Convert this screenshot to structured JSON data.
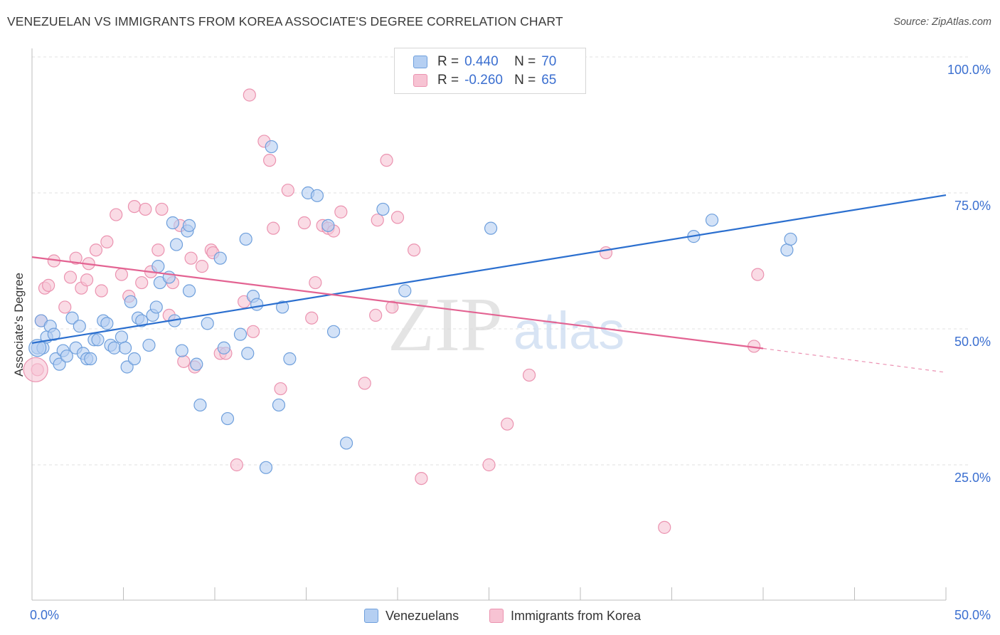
{
  "title": "VENEZUELAN VS IMMIGRANTS FROM KOREA ASSOCIATE'S DEGREE CORRELATION CHART",
  "source": "Source: ZipAtlas.com",
  "watermark": {
    "zip": "ZIP",
    "atlas": "atlas"
  },
  "legend": {
    "rows": [
      {
        "r_label": "R =",
        "r_value": "0.440",
        "n_label": "N =",
        "n_value": "70"
      },
      {
        "r_label": "R =",
        "r_value": "-0.260",
        "n_label": "N =",
        "n_value": "65"
      }
    ]
  },
  "bottom_legend": {
    "venezuelans": "Venezuelans",
    "korea": "Immigrants from Korea"
  },
  "colors": {
    "blue_fill": "#b5cff2",
    "blue_stroke": "#6e9fdc",
    "blue_line": "#2b6fcf",
    "pink_fill": "#f7c3d3",
    "pink_stroke": "#eb93b0",
    "pink_line": "#e36392",
    "axis_text": "#3b6fd0",
    "grid": "#e2e2e2"
  },
  "chart_data": {
    "type": "scatter",
    "title": "VENEZUELAN VS IMMIGRANTS FROM KOREA ASSOCIATE'S DEGREE CORRELATION CHART",
    "xlabel": "",
    "ylabel": "Associate's Degree",
    "xlim": [
      0,
      50
    ],
    "ylim": [
      0,
      105
    ],
    "x_tick_labels": [
      "0.0%",
      "50.0%"
    ],
    "y_ticks": [
      25,
      50,
      75,
      100
    ],
    "y_tick_labels": [
      "25.0%",
      "50.0%",
      "75.0%",
      "100.0%"
    ],
    "grid": true,
    "legend_position": "top-center",
    "series": [
      {
        "name": "Venezuelans",
        "R": 0.44,
        "N": 70,
        "trend": {
          "x": [
            0,
            50
          ],
          "y": [
            47.4,
            74.6
          ]
        },
        "points": [
          [
            0.3,
            46.5
          ],
          [
            0.5,
            51.5
          ],
          [
            0.6,
            46.5
          ],
          [
            0.8,
            48.5
          ],
          [
            1.0,
            50.5
          ],
          [
            1.2,
            49.0
          ],
          [
            1.3,
            44.5
          ],
          [
            1.5,
            43.5
          ],
          [
            1.7,
            46.0
          ],
          [
            1.9,
            45.0
          ],
          [
            2.2,
            52.0
          ],
          [
            2.4,
            46.5
          ],
          [
            2.6,
            50.5
          ],
          [
            2.8,
            45.5
          ],
          [
            3.0,
            44.5
          ],
          [
            3.2,
            44.5
          ],
          [
            3.4,
            48.0
          ],
          [
            3.6,
            48.0
          ],
          [
            3.9,
            51.5
          ],
          [
            4.1,
            51.0
          ],
          [
            4.3,
            47.0
          ],
          [
            4.5,
            46.5
          ],
          [
            4.9,
            48.5
          ],
          [
            5.1,
            46.5
          ],
          [
            5.2,
            43.0
          ],
          [
            5.4,
            55.0
          ],
          [
            5.6,
            44.5
          ],
          [
            5.8,
            52.0
          ],
          [
            6.0,
            51.5
          ],
          [
            6.4,
            47.0
          ],
          [
            6.6,
            52.5
          ],
          [
            6.8,
            54.0
          ],
          [
            6.9,
            61.5
          ],
          [
            7.0,
            58.5
          ],
          [
            7.5,
            59.5
          ],
          [
            7.7,
            69.5
          ],
          [
            7.8,
            51.5
          ],
          [
            7.9,
            65.5
          ],
          [
            8.2,
            46.0
          ],
          [
            8.5,
            68.0
          ],
          [
            8.6,
            57.0
          ],
          [
            8.6,
            69.0
          ],
          [
            9.0,
            43.5
          ],
          [
            9.2,
            36.0
          ],
          [
            9.6,
            51.0
          ],
          [
            10.3,
            63.0
          ],
          [
            10.5,
            46.5
          ],
          [
            10.7,
            33.5
          ],
          [
            11.4,
            49.0
          ],
          [
            11.7,
            66.5
          ],
          [
            11.8,
            45.5
          ],
          [
            12.1,
            56.0
          ],
          [
            12.3,
            54.5
          ],
          [
            12.8,
            24.5
          ],
          [
            13.1,
            83.5
          ],
          [
            13.5,
            36.0
          ],
          [
            13.7,
            54.0
          ],
          [
            14.1,
            44.5
          ],
          [
            15.1,
            75.0
          ],
          [
            15.6,
            74.5
          ],
          [
            16.2,
            69.0
          ],
          [
            16.5,
            49.5
          ],
          [
            17.2,
            29.0
          ],
          [
            19.2,
            72.0
          ],
          [
            20.4,
            57.0
          ],
          [
            25.1,
            68.5
          ],
          [
            36.2,
            67.0
          ],
          [
            37.2,
            70.0
          ],
          [
            41.3,
            64.5
          ],
          [
            41.5,
            66.5
          ]
        ]
      },
      {
        "name": "Immigrants from Korea",
        "R": -0.26,
        "N": 65,
        "trend": {
          "x": [
            0,
            40
          ],
          "y": [
            63.2,
            46.4
          ]
        },
        "trend_dashed": {
          "x": [
            40,
            50
          ],
          "y": [
            46.4,
            42.0
          ]
        },
        "points": [
          [
            0.3,
            42.5
          ],
          [
            0.5,
            51.5
          ],
          [
            0.7,
            57.5
          ],
          [
            0.9,
            58.0
          ],
          [
            1.2,
            62.5
          ],
          [
            1.8,
            54.0
          ],
          [
            2.1,
            59.5
          ],
          [
            2.4,
            63.0
          ],
          [
            2.7,
            57.5
          ],
          [
            3.0,
            59.0
          ],
          [
            3.1,
            62.0
          ],
          [
            3.5,
            64.5
          ],
          [
            3.8,
            57.0
          ],
          [
            4.1,
            66.0
          ],
          [
            4.6,
            71.0
          ],
          [
            4.9,
            60.0
          ],
          [
            5.3,
            56.0
          ],
          [
            5.6,
            72.5
          ],
          [
            6.0,
            58.5
          ],
          [
            6.2,
            72.0
          ],
          [
            6.5,
            60.5
          ],
          [
            6.9,
            64.5
          ],
          [
            7.1,
            72.0
          ],
          [
            7.5,
            52.5
          ],
          [
            7.7,
            58.5
          ],
          [
            8.1,
            69.0
          ],
          [
            8.3,
            44.0
          ],
          [
            8.7,
            63.0
          ],
          [
            8.9,
            43.0
          ],
          [
            9.3,
            61.5
          ],
          [
            9.8,
            64.5
          ],
          [
            9.9,
            64.0
          ],
          [
            10.3,
            45.5
          ],
          [
            10.6,
            45.5
          ],
          [
            11.2,
            25.0
          ],
          [
            11.6,
            55.0
          ],
          [
            11.9,
            93.0
          ],
          [
            12.1,
            49.5
          ],
          [
            12.7,
            84.5
          ],
          [
            13.0,
            81.0
          ],
          [
            13.2,
            68.5
          ],
          [
            13.6,
            39.0
          ],
          [
            14.0,
            75.5
          ],
          [
            14.9,
            69.5
          ],
          [
            15.3,
            52.0
          ],
          [
            15.5,
            58.5
          ],
          [
            15.9,
            69.0
          ],
          [
            16.2,
            68.5
          ],
          [
            16.5,
            68.0
          ],
          [
            16.9,
            71.5
          ],
          [
            18.2,
            40.0
          ],
          [
            18.8,
            52.5
          ],
          [
            18.9,
            70.0
          ],
          [
            19.4,
            81.0
          ],
          [
            19.7,
            54.0
          ],
          [
            20.0,
            70.5
          ],
          [
            20.9,
            64.5
          ],
          [
            21.3,
            22.5
          ],
          [
            25.0,
            25.0
          ],
          [
            26.0,
            32.5
          ],
          [
            27.2,
            41.5
          ],
          [
            31.4,
            64.0
          ],
          [
            34.6,
            13.5
          ],
          [
            39.5,
            46.8
          ],
          [
            39.7,
            60.0
          ]
        ]
      }
    ]
  }
}
